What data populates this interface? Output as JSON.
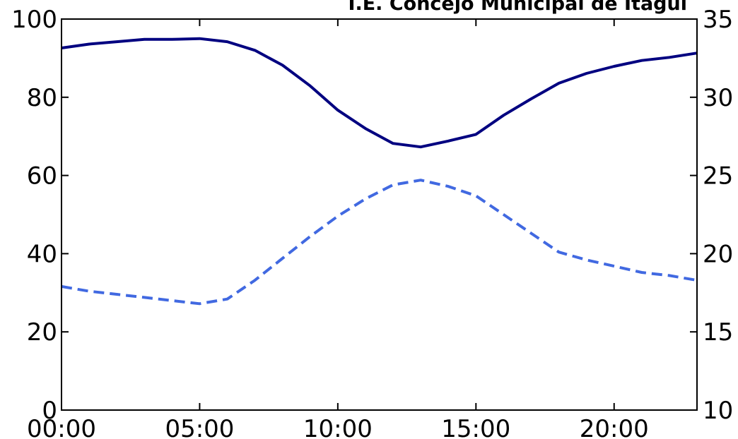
{
  "chart_data": {
    "type": "line",
    "title": "I.E. Concejo Municipal de Itagüí",
    "xlabel": "",
    "ylabel": "",
    "x": [
      "00:00",
      "01:00",
      "02:00",
      "03:00",
      "04:00",
      "05:00",
      "06:00",
      "07:00",
      "08:00",
      "09:00",
      "10:00",
      "11:00",
      "12:00",
      "13:00",
      "14:00",
      "15:00",
      "16:00",
      "17:00",
      "18:00",
      "19:00",
      "20:00",
      "21:00",
      "22:00",
      "23:00"
    ],
    "x_ticks": [
      "00:00",
      "05:00",
      "10:00",
      "15:00",
      "20:00"
    ],
    "x_tick_hours": [
      0,
      5,
      10,
      15,
      20
    ],
    "x_range_hours": [
      0,
      23
    ],
    "ylim_left": [
      0,
      100
    ],
    "yticks_left": [
      "0",
      "20",
      "40",
      "60",
      "80",
      "100"
    ],
    "ylim_right": [
      10,
      35
    ],
    "yticks_right": [
      "10",
      "15",
      "20",
      "25",
      "30",
      "35"
    ],
    "grid": false,
    "legend": "none",
    "series": [
      {
        "axis": "left",
        "style": "solid",
        "color": "#000080",
        "values": [
          92.6,
          93.6,
          94.2,
          94.8,
          94.8,
          95.0,
          94.2,
          92.0,
          88.2,
          82.9,
          76.7,
          72.0,
          68.2,
          67.3,
          68.8,
          70.5,
          75.4,
          79.6,
          83.6,
          86.1,
          87.9,
          89.4,
          90.2,
          91.3
        ]
      },
      {
        "axis": "right",
        "style": "dashed",
        "color": "#4169E1",
        "values": [
          17.9,
          17.6,
          17.4,
          17.2,
          17.0,
          16.8,
          17.1,
          18.3,
          19.7,
          21.1,
          22.4,
          23.5,
          24.4,
          24.7,
          24.3,
          23.7,
          22.5,
          21.3,
          20.1,
          19.6,
          19.2,
          18.8,
          18.6,
          18.3
        ]
      }
    ]
  }
}
